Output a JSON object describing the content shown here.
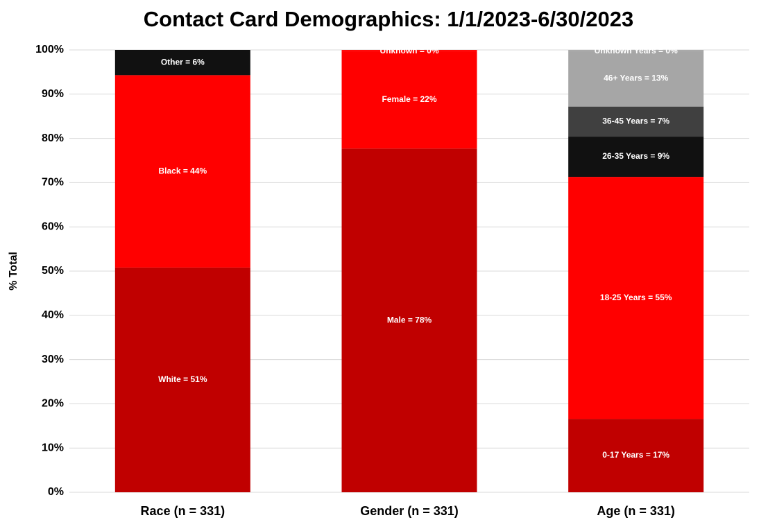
{
  "chart_data": {
    "type": "stacked_bar",
    "title": "Contact Card Demographics: 1/1/2023-6/30/2023",
    "y_axis_label": "% Total",
    "categories": [
      "Race (n = 331)",
      "Gender (n = 331)",
      "Age (n = 331)"
    ],
    "stacks": [
      {
        "values": [
          50.8,
          43.5,
          5.7
        ],
        "value_labels": [
          "White = 51%",
          "Black = 44%",
          "Other = 6%"
        ],
        "colors": [
          "#c00000",
          "#ff0000",
          "#111111"
        ]
      },
      {
        "values": [
          77.7,
          22.1,
          0.2
        ],
        "value_labels": [
          "Male = 78%",
          "Female = 22%",
          "Unknown = 0%"
        ],
        "colors": [
          "#c00000",
          "#ff0000",
          "#ff0000"
        ]
      },
      {
        "values": [
          16.6,
          54.7,
          9.1,
          6.8,
          12.6,
          0.2
        ],
        "value_labels": [
          "0-17 Years = 17%",
          "18-25 Years = 55%",
          "26-35 Years = 9%",
          "36-45 Years = 7%",
          "46+ Years = 13%",
          "Unknown  Years = 0%"
        ],
        "colors": [
          "#c00000",
          "#ff0000",
          "#111111",
          "#404040",
          "#a6a6a6",
          "#a6a6a6"
        ]
      }
    ],
    "ylim": [
      0,
      100
    ],
    "yticks": [
      {
        "value": 0,
        "label": "0%"
      },
      {
        "value": 10,
        "label": "10%"
      },
      {
        "value": 20,
        "label": "20%"
      },
      {
        "value": 30,
        "label": "30%"
      },
      {
        "value": 40,
        "label": "40%"
      },
      {
        "value": 50,
        "label": "50%"
      },
      {
        "value": 60,
        "label": "60%"
      },
      {
        "value": 70,
        "label": "70%"
      },
      {
        "value": 80,
        "label": "80%"
      },
      {
        "value": 90,
        "label": "90%"
      },
      {
        "value": 100,
        "label": "100%"
      }
    ],
    "grid": true
  }
}
